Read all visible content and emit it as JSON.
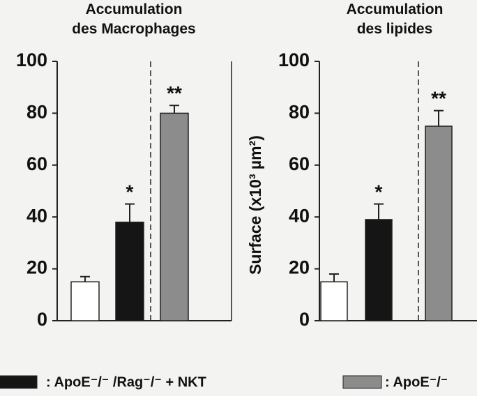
{
  "chart_data": [
    {
      "type": "bar",
      "title": [
        "Accumulation",
        "des Macrophages"
      ],
      "ylim": [
        0,
        100
      ],
      "yticks": [
        0,
        20,
        40,
        60,
        80,
        100
      ],
      "series": [
        {
          "color": "#ffffff",
          "values": [
            15
          ],
          "errors": [
            2
          ]
        },
        {
          "color": "#151515",
          "values": [
            38
          ],
          "errors": [
            7
          ],
          "annotation": "*"
        },
        {
          "color": "#8c8c8c",
          "values": [
            80
          ],
          "errors": [
            3
          ],
          "annotation": "**"
        }
      ]
    },
    {
      "type": "bar",
      "title": [
        "Accumulation",
        "des lipides"
      ],
      "ylabel": "Surface (x10³ µm²)",
      "ylim": [
        0,
        100
      ],
      "yticks": [
        0,
        20,
        40,
        60,
        80,
        100
      ],
      "series": [
        {
          "color": "#ffffff",
          "values": [
            15
          ],
          "errors": [
            3
          ]
        },
        {
          "color": "#151515",
          "values": [
            39
          ],
          "errors": [
            6
          ],
          "annotation": "*"
        },
        {
          "color": "#8c8c8c",
          "values": [
            75
          ],
          "errors": [
            6
          ],
          "annotation": "**"
        }
      ]
    }
  ],
  "legend": [
    {
      "text": ": ApoE⁻/⁻ /Rag⁻/⁻ + NKT",
      "color": "#151515"
    },
    {
      "text": ": ApoE⁻/⁻",
      "color": "#8c8c8c"
    }
  ]
}
